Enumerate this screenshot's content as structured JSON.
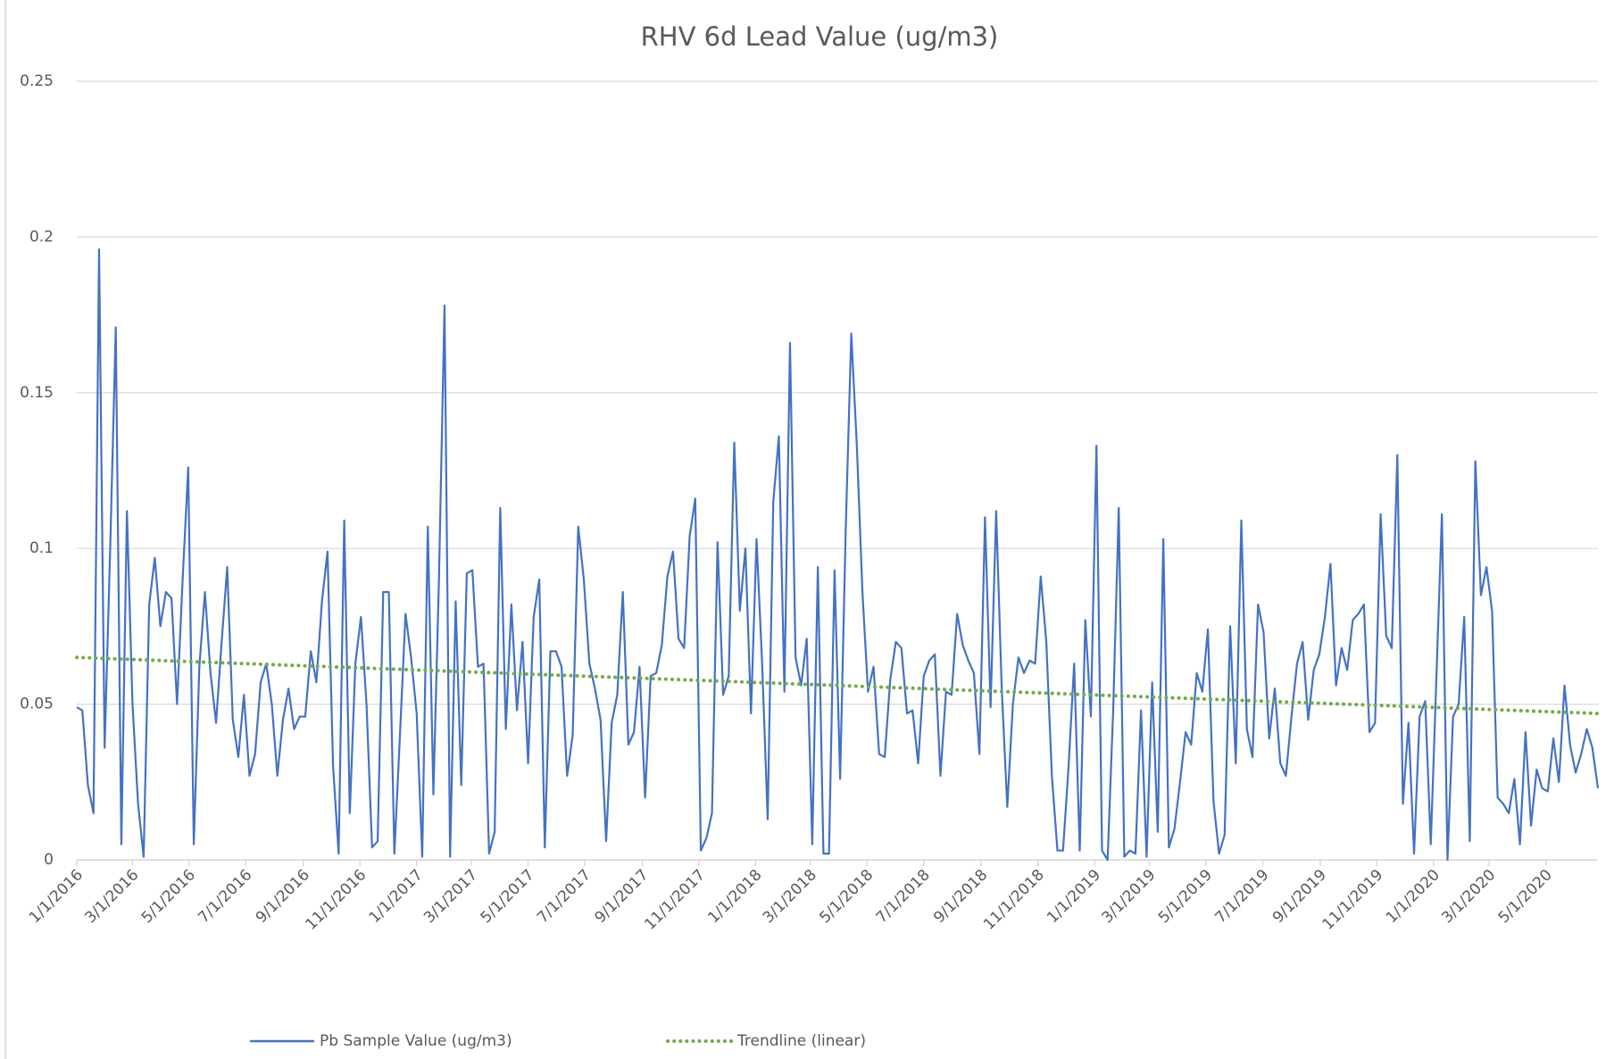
{
  "chart_data": {
    "type": "line",
    "title": "RHV 6d Lead Value (ug/m3)",
    "x": [
      "1/1/2016",
      "1/7/2016",
      "1/13/2016",
      "1/19/2016",
      "1/25/2016",
      "1/31/2016",
      "2/6/2016",
      "2/12/2016",
      "2/18/2016",
      "2/24/2016",
      "3/1/2016",
      "3/7/2016",
      "3/13/2016",
      "3/19/2016",
      "3/25/2016",
      "3/31/2016",
      "4/6/2016",
      "4/12/2016",
      "4/18/2016",
      "4/24/2016",
      "4/30/2016",
      "5/6/2016",
      "5/12/2016",
      "5/18/2016",
      "5/24/2016",
      "5/30/2016",
      "6/5/2016",
      "6/11/2016",
      "6/17/2016",
      "6/23/2016",
      "6/29/2016",
      "7/5/2016",
      "7/11/2016",
      "7/17/2016",
      "7/23/2016",
      "7/29/2016",
      "8/4/2016",
      "8/10/2016",
      "8/16/2016",
      "8/22/2016",
      "8/28/2016",
      "9/3/2016",
      "9/9/2016",
      "9/15/2016",
      "9/21/2016",
      "9/27/2016",
      "10/3/2016",
      "10/9/2016",
      "10/15/2016",
      "10/21/2016",
      "10/27/2016",
      "11/2/2016",
      "11/8/2016",
      "11/14/2016",
      "11/20/2016",
      "11/26/2016",
      "12/2/2016",
      "12/8/2016",
      "12/14/2016",
      "12/20/2016",
      "12/26/2016",
      "1/1/2017",
      "1/7/2017",
      "1/13/2017",
      "1/19/2017",
      "1/25/2017",
      "1/31/2017",
      "2/6/2017",
      "2/12/2017",
      "2/18/2017",
      "2/24/2017",
      "3/2/2017",
      "3/8/2017",
      "3/14/2017",
      "3/20/2017",
      "3/26/2017",
      "4/1/2017",
      "4/7/2017",
      "4/13/2017",
      "4/19/2017",
      "4/25/2017",
      "5/1/2017",
      "5/7/2017",
      "5/13/2017",
      "5/19/2017",
      "5/25/2017",
      "5/31/2017",
      "6/6/2017",
      "6/12/2017",
      "6/18/2017",
      "6/24/2017",
      "6/30/2017",
      "7/6/2017",
      "7/12/2017",
      "7/18/2017",
      "7/24/2017",
      "7/30/2017",
      "8/5/2017",
      "8/11/2017",
      "8/17/2017",
      "8/23/2017",
      "8/29/2017",
      "9/4/2017",
      "9/10/2017",
      "9/16/2017",
      "9/22/2017",
      "9/28/2017",
      "10/4/2017",
      "10/10/2017",
      "10/16/2017",
      "10/22/2017",
      "10/28/2017",
      "11/3/2017",
      "11/9/2017",
      "11/15/2017",
      "11/21/2017",
      "11/27/2017",
      "12/3/2017",
      "12/9/2017",
      "12/15/2017",
      "12/21/2017",
      "12/27/2017",
      "1/2/2018",
      "1/8/2018",
      "1/14/2018",
      "1/20/2018",
      "1/26/2018",
      "2/1/2018",
      "2/7/2018",
      "2/13/2018",
      "2/19/2018",
      "2/25/2018",
      "3/3/2018",
      "3/9/2018",
      "3/15/2018",
      "3/21/2018",
      "3/27/2018",
      "4/2/2018",
      "4/8/2018",
      "4/14/2018",
      "4/20/2018",
      "4/26/2018",
      "5/2/2018",
      "5/8/2018",
      "5/14/2018",
      "5/20/2018",
      "5/26/2018",
      "6/1/2018",
      "6/7/2018",
      "6/13/2018",
      "6/19/2018",
      "6/25/2018",
      "7/1/2018",
      "7/7/2018",
      "7/13/2018",
      "7/19/2018",
      "7/25/2018",
      "7/31/2018",
      "8/6/2018",
      "8/12/2018",
      "8/18/2018",
      "8/24/2018",
      "8/30/2018",
      "9/5/2018",
      "9/11/2018",
      "9/17/2018",
      "9/23/2018",
      "9/29/2018",
      "10/5/2018",
      "10/11/2018",
      "10/17/2018",
      "10/23/2018",
      "10/29/2018",
      "11/4/2018",
      "11/10/2018",
      "11/16/2018",
      "11/22/2018",
      "11/28/2018",
      "12/4/2018",
      "12/10/2018",
      "12/16/2018",
      "12/22/2018",
      "12/28/2018",
      "1/3/2019",
      "1/9/2019",
      "1/15/2019",
      "1/21/2019",
      "1/27/2019",
      "2/2/2019",
      "2/8/2019",
      "2/14/2019",
      "2/20/2019",
      "2/26/2019",
      "3/4/2019",
      "3/10/2019",
      "3/16/2019",
      "3/22/2019",
      "3/28/2019",
      "4/3/2019",
      "4/9/2019",
      "4/15/2019",
      "4/21/2019",
      "4/27/2019",
      "5/3/2019",
      "5/9/2019",
      "5/15/2019",
      "5/21/2019",
      "5/27/2019",
      "6/2/2019",
      "6/8/2019",
      "6/14/2019",
      "6/20/2019",
      "6/26/2019",
      "7/2/2019",
      "7/8/2019",
      "7/14/2019",
      "7/20/2019",
      "7/26/2019",
      "8/1/2019",
      "8/7/2019",
      "8/13/2019",
      "8/19/2019",
      "8/25/2019",
      "8/31/2019",
      "9/6/2019",
      "9/12/2019",
      "9/18/2019",
      "9/24/2019",
      "9/30/2019",
      "10/6/2019",
      "10/12/2019",
      "10/18/2019",
      "10/24/2019",
      "10/30/2019",
      "11/5/2019",
      "11/11/2019",
      "11/17/2019",
      "11/23/2019",
      "11/29/2019",
      "12/5/2019",
      "12/11/2019",
      "12/17/2019",
      "12/23/2019",
      "12/29/2019",
      "1/4/2020",
      "1/10/2020",
      "1/16/2020",
      "1/22/2020",
      "1/28/2020",
      "2/3/2020",
      "2/9/2020",
      "2/15/2020",
      "2/21/2020",
      "2/27/2020",
      "3/4/2020",
      "3/10/2020",
      "3/16/2020",
      "3/22/2020",
      "3/28/2020",
      "4/3/2020",
      "4/9/2020",
      "4/15/2020",
      "4/21/2020",
      "4/27/2020",
      "5/3/2020",
      "5/9/2020",
      "5/15/2020",
      "5/21/2020",
      "5/27/2020",
      "6/2/2020",
      "6/8/2020",
      "6/14/2020",
      "6/20/2020",
      "6/26/2020"
    ],
    "series": [
      {
        "name": "Pb Sample Value (ug/m3)",
        "color": "#4472c4",
        "values": [
          0.049,
          0.048,
          0.024,
          0.015,
          0.196,
          0.036,
          0.1,
          0.171,
          0.005,
          0.112,
          0.05,
          0.018,
          0.001,
          0.082,
          0.097,
          0.075,
          0.086,
          0.084,
          0.05,
          0.09,
          0.126,
          0.005,
          0.062,
          0.086,
          0.06,
          0.044,
          0.07,
          0.094,
          0.045,
          0.033,
          0.053,
          0.027,
          0.034,
          0.057,
          0.063,
          0.05,
          0.027,
          0.045,
          0.055,
          0.042,
          0.046,
          0.046,
          0.067,
          0.057,
          0.083,
          0.099,
          0.03,
          0.002,
          0.109,
          0.015,
          0.063,
          0.078,
          0.05,
          0.004,
          0.006,
          0.086,
          0.086,
          0.002,
          0.04,
          0.079,
          0.065,
          0.047,
          0.001,
          0.107,
          0.021,
          0.09,
          0.178,
          0.001,
          0.083,
          0.024,
          0.092,
          0.093,
          0.062,
          0.063,
          0.002,
          0.009,
          0.113,
          0.042,
          0.082,
          0.048,
          0.07,
          0.031,
          0.078,
          0.09,
          0.004,
          0.067,
          0.067,
          0.062,
          0.027,
          0.04,
          0.107,
          0.09,
          0.063,
          0.055,
          0.045,
          0.006,
          0.044,
          0.053,
          0.086,
          0.037,
          0.041,
          0.062,
          0.02,
          0.059,
          0.06,
          0.069,
          0.091,
          0.099,
          0.071,
          0.068,
          0.104,
          0.116,
          0.003,
          0.007,
          0.015,
          0.102,
          0.053,
          0.059,
          0.134,
          0.08,
          0.1,
          0.047,
          0.103,
          0.063,
          0.013,
          0.115,
          0.136,
          0.054,
          0.166,
          0.065,
          0.056,
          0.071,
          0.005,
          0.094,
          0.002,
          0.002,
          0.093,
          0.026,
          0.106,
          0.169,
          0.133,
          0.086,
          0.054,
          0.062,
          0.034,
          0.033,
          0.058,
          0.07,
          0.068,
          0.047,
          0.048,
          0.031,
          0.059,
          0.064,
          0.066,
          0.027,
          0.054,
          0.053,
          0.079,
          0.069,
          0.064,
          0.06,
          0.034,
          0.11,
          0.049,
          0.112,
          0.055,
          0.017,
          0.05,
          0.065,
          0.06,
          0.064,
          0.063,
          0.091,
          0.07,
          0.027,
          0.003,
          0.003,
          0.03,
          0.063,
          0.003,
          0.077,
          0.046,
          0.133,
          0.003,
          0,
          0.048,
          0.113,
          0.001,
          0.003,
          0.002,
          0.048,
          0.001,
          0.057,
          0.009,
          0.103,
          0.004,
          0.01,
          0.025,
          0.041,
          0.037,
          0.06,
          0.054,
          0.074,
          0.019,
          0.002,
          0.008,
          0.075,
          0.031,
          0.109,
          0.042,
          0.033,
          0.082,
          0.073,
          0.039,
          0.055,
          0.031,
          0.027,
          0.046,
          0.063,
          0.07,
          0.045,
          0.061,
          0.066,
          0.078,
          0.095,
          0.056,
          0.068,
          0.061,
          0.077,
          0.079,
          0.082,
          0.041,
          0.044,
          0.111,
          0.072,
          0.068,
          0.13,
          0.018,
          0.044,
          0.002,
          0.046,
          0.051,
          0.005,
          0.058,
          0.111,
          0,
          0.046,
          0.05,
          0.078,
          0.006,
          0.128,
          0.085,
          0.094,
          0.08,
          0.02,
          0.018,
          0.015,
          0.026,
          0.005,
          0.041,
          0.011,
          0.029,
          0.023,
          0.022,
          0.039,
          0.025,
          0.056,
          0.037,
          0.028,
          0.034,
          0.042,
          0.036,
          0.023
        ]
      },
      {
        "name": "Trendline (linear)",
        "color": "#70ad47",
        "dotted": true,
        "x": [
          "1/1/2016",
          "6/26/2020"
        ],
        "values": [
          0.065,
          0.047
        ]
      }
    ],
    "xlim": [
      "1/1/2016",
      "6/26/2020"
    ],
    "xticks": [
      "1/1/2016",
      "3/1/2016",
      "5/1/2016",
      "7/1/2016",
      "9/1/2016",
      "11/1/2016",
      "1/1/2017",
      "3/1/2017",
      "5/1/2017",
      "7/1/2017",
      "9/1/2017",
      "11/1/2017",
      "1/1/2018",
      "3/1/2018",
      "5/1/2018",
      "7/1/2018",
      "9/1/2018",
      "11/1/2018",
      "1/1/2019",
      "3/1/2019",
      "5/1/2019",
      "7/1/2019",
      "9/1/2019",
      "11/1/2019",
      "1/1/2020",
      "3/1/2020",
      "5/1/2020"
    ],
    "ylim": [
      0,
      0.25
    ],
    "yticks": [
      0,
      0.05,
      0.1,
      0.15,
      0.2,
      0.25
    ],
    "grid": true,
    "legend": "bottom"
  }
}
